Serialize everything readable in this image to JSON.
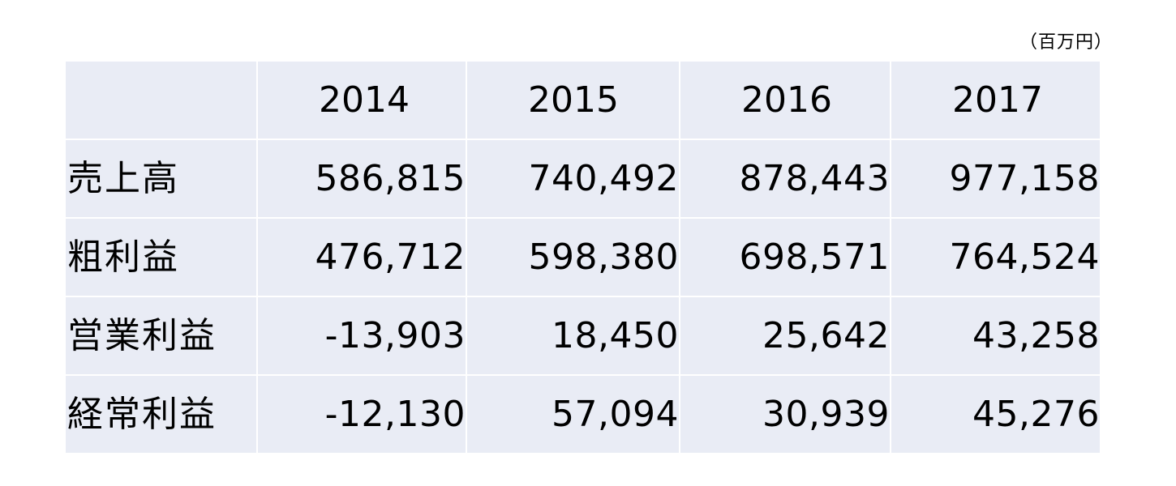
{
  "unit_note": "（百万円）",
  "table": {
    "columns": [
      "",
      "2014",
      "2015",
      "2016",
      "2017"
    ],
    "rows": [
      {
        "label": "売上高",
        "values": [
          "586,815",
          "740,492",
          "878,443",
          "977,158"
        ]
      },
      {
        "label": "粗利益",
        "values": [
          "476,712",
          "598,380",
          "698,571",
          "764,524"
        ]
      },
      {
        "label": "営業利益",
        "values": [
          "-13,903",
          "18,450",
          "25,642",
          "43,258"
        ]
      },
      {
        "label": "経常利益",
        "values": [
          "-12,130",
          "57,094",
          "30,939",
          "45,276"
        ]
      }
    ]
  },
  "colors": {
    "table_background": "#e9ecf5",
    "cell_border": "#ffffff",
    "text": "#000000"
  }
}
